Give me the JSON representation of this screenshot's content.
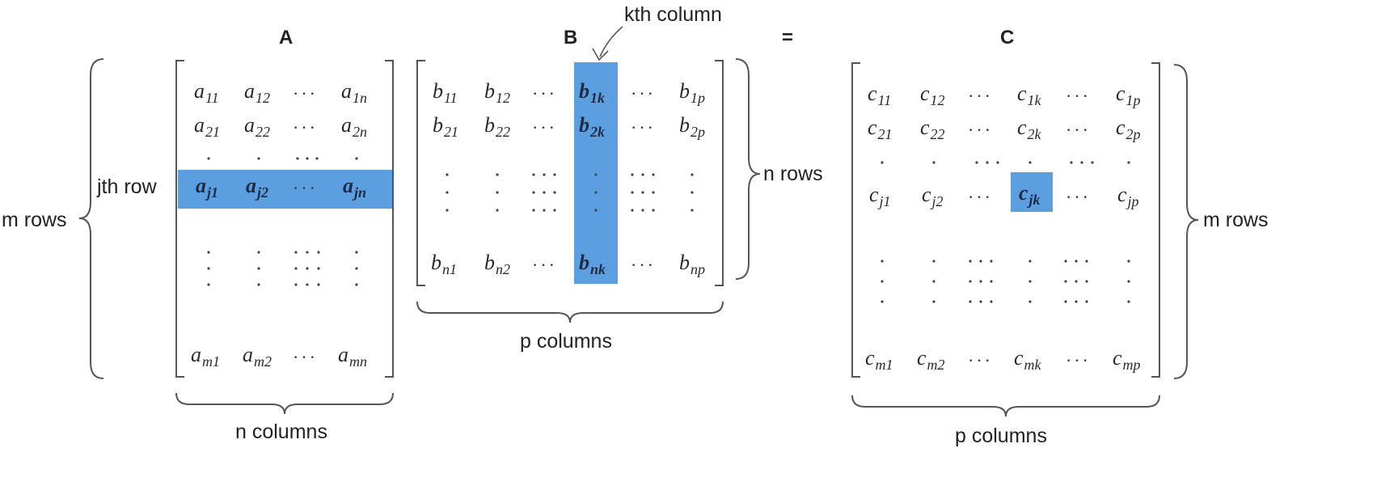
{
  "matrices": {
    "a": {
      "name": "A",
      "cells": [
        [
          "a",
          "11",
          "a",
          "12",
          "a",
          "1n"
        ],
        [
          "a",
          "21",
          "a",
          "22",
          "a",
          "2n"
        ],
        [
          "a",
          "j1",
          "a",
          "j2",
          "a",
          "jn"
        ],
        [
          "a",
          "m1",
          "a",
          "m2",
          "a",
          "mn"
        ]
      ]
    },
    "b": {
      "name": "B",
      "cells": [
        [
          "b",
          "11",
          "b",
          "12",
          "b",
          "1k",
          "b",
          "1p"
        ],
        [
          "b",
          "21",
          "b",
          "22",
          "b",
          "2k",
          "b",
          "2p"
        ],
        [
          "b",
          "n1",
          "b",
          "n2",
          "b",
          "nk",
          "b",
          "np"
        ]
      ]
    },
    "c": {
      "name": "C",
      "cells": [
        [
          "c",
          "11",
          "c",
          "12",
          "c",
          "1k",
          "c",
          "1p"
        ],
        [
          "c",
          "21",
          "c",
          "22",
          "c",
          "2k",
          "c",
          "2p"
        ],
        [
          "c",
          "j1",
          "c",
          "j2",
          "c",
          "jk",
          "c",
          "jp"
        ],
        [
          "c",
          "m1",
          "c",
          "m2",
          "c",
          "mk",
          "c",
          "mp"
        ]
      ]
    }
  },
  "equals": "=",
  "labels": {
    "jth_row": "jth row",
    "kth_column": "kth column",
    "a_rows": "m rows",
    "a_columns": "n columns",
    "b_rows": "n rows",
    "b_columns": "p columns",
    "c_rows": "m rows",
    "c_columns": "p columns"
  },
  "ellipsis": "···",
  "colors": {
    "highlight": "#5b9fe0",
    "ink": "#2a2a2a"
  }
}
